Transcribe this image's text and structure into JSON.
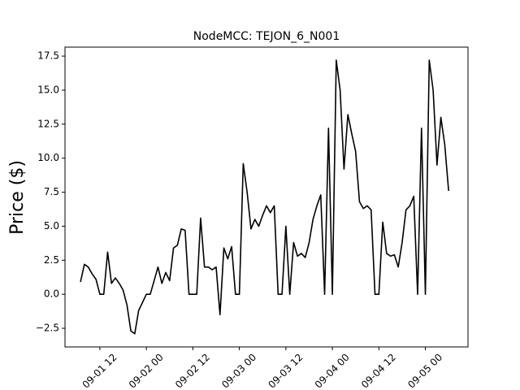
{
  "chart_data": {
    "type": "line",
    "title": "NodeMCC: TEJON_6_N001",
    "y_label": "Price ($)",
    "x": [
      "09-01 07",
      "09-01 08",
      "09-01 09",
      "09-01 10",
      "09-01 11",
      "09-01 12",
      "09-01 13",
      "09-01 14",
      "09-01 15",
      "09-01 16",
      "09-01 17",
      "09-01 18",
      "09-01 19",
      "09-01 20",
      "09-01 21",
      "09-01 22",
      "09-01 23",
      "09-02 00",
      "09-02 01",
      "09-02 02",
      "09-02 03",
      "09-02 04",
      "09-02 05",
      "09-02 06",
      "09-02 07",
      "09-02 08",
      "09-02 09",
      "09-02 10",
      "09-02 11",
      "09-02 12",
      "09-02 13",
      "09-02 14",
      "09-02 15",
      "09-02 16",
      "09-02 17",
      "09-02 18",
      "09-02 19",
      "09-02 20",
      "09-02 21",
      "09-02 22",
      "09-02 23",
      "09-03 00",
      "09-03 01",
      "09-03 02",
      "09-03 03",
      "09-03 04",
      "09-03 05",
      "09-03 06",
      "09-03 07",
      "09-03 08",
      "09-03 09",
      "09-03 10",
      "09-03 11",
      "09-03 12",
      "09-03 13",
      "09-03 14",
      "09-03 15",
      "09-03 16",
      "09-03 17",
      "09-03 18",
      "09-03 19",
      "09-03 20",
      "09-03 21",
      "09-03 22",
      "09-03 23",
      "09-04 00",
      "09-04 01",
      "09-04 02",
      "09-04 03",
      "09-04 04",
      "09-04 05",
      "09-04 06",
      "09-04 07",
      "09-04 08",
      "09-04 09",
      "09-04 10",
      "09-04 11",
      "09-04 12",
      "09-04 13",
      "09-04 14",
      "09-04 15",
      "09-04 16",
      "09-04 17",
      "09-04 18",
      "09-04 19",
      "09-04 20",
      "09-04 21",
      "09-04 22",
      "09-04 23",
      "09-05 00",
      "09-05 01",
      "09-05 02",
      "09-05 03",
      "09-05 04",
      "09-05 05",
      "09-05 06"
    ],
    "series": [
      {
        "name": "TEJON_6_N001",
        "color": "#000000",
        "values": [
          0.9,
          2.2,
          2.0,
          1.5,
          1.1,
          0,
          0,
          3.1,
          0.8,
          1.2,
          0.8,
          0.3,
          -0.8,
          -2.7,
          -2.9,
          -1.2,
          -0.6,
          0,
          0,
          1.0,
          2.0,
          0.8,
          1.6,
          1.0,
          3.4,
          3.6,
          4.8,
          4.7,
          0,
          0,
          0,
          5.6,
          2.0,
          2.0,
          1.8,
          2.0,
          -1.5,
          3.4,
          2.6,
          3.5,
          0,
          0,
          9.6,
          7.5,
          4.8,
          5.5,
          5.0,
          5.8,
          6.5,
          6.0,
          6.5,
          0,
          0,
          5.0,
          0,
          3.8,
          2.8,
          3.0,
          2.7,
          3.8,
          5.5,
          6.5,
          7.3,
          0,
          12.2,
          0,
          17.2,
          15.0,
          9.2,
          13.2,
          11.8,
          10.5,
          6.8,
          6.3,
          6.5,
          6.2,
          0,
          0,
          5.3,
          3.0,
          2.8,
          2.9,
          2.0,
          3.8,
          6.2,
          6.5,
          7.2,
          0,
          12.2,
          0,
          17.2,
          15.0,
          9.5,
          13.0,
          11.0,
          7.6
        ]
      }
    ],
    "xlim": [
      "09-01 03",
      "09-05 11"
    ],
    "xticks": [
      "09-01 12",
      "09-02 00",
      "09-02 12",
      "09-03 00",
      "09-03 12",
      "09-04 00",
      "09-04 12",
      "09-05 00"
    ],
    "ylim": [
      -3.87,
      18.16
    ],
    "yticks": [
      {
        "value": -2.5,
        "label": "−2.5"
      },
      {
        "value": 0,
        "label": "0.0"
      },
      2.5,
      {
        "value": 5,
        "label": "5.0"
      },
      7.5,
      {
        "value": 10,
        "label": "10.0"
      },
      12.5,
      {
        "value": 15,
        "label": "15.0"
      },
      17.5
    ],
    "grid": false
  }
}
